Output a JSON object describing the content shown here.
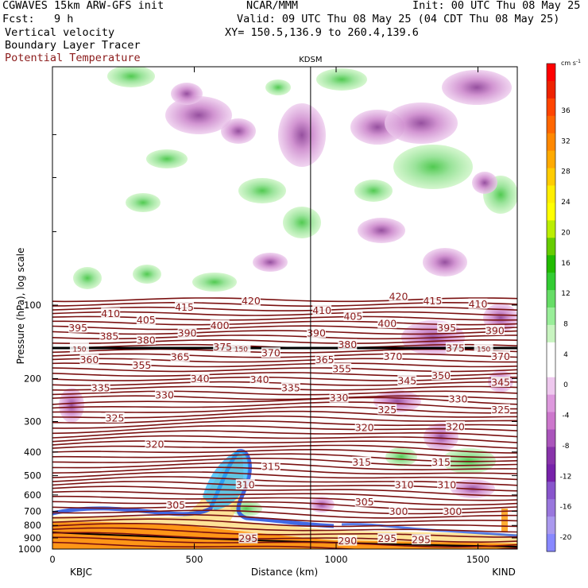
{
  "header": {
    "model": "CGWAVES 15km ARW-GFS init",
    "org": "NCAR/MMM",
    "init": "Init: 00 UTC Thu 08 May 25",
    "fcst": "Fcst:   9 h",
    "valid": "Valid: 09 UTC Thu 08 May 25 (04 CDT Thu 08 May 25)",
    "fields": [
      "Vertical velocity",
      "Boundary Layer Tracer"
    ],
    "theta_field": "Potential Temperature",
    "xy": "XY= 150.5,136.9 to 260.4,139.6"
  },
  "colors": {
    "theta": "#7a1010",
    "theta_text": "#8b1a1a"
  },
  "chart_data": {
    "type": "heatmap",
    "xlabel": "Distance (km)",
    "ylabel": "Pressure (hPa), log scale",
    "y_scale": "log",
    "xlim": [
      0,
      1640
    ],
    "x_ticks": [
      0,
      500,
      1000,
      1500
    ],
    "y_ticks": [
      100,
      200,
      300,
      400,
      500,
      600,
      700,
      800,
      900,
      1000
    ],
    "station_left": "KBJC",
    "station_right": "KIND",
    "station_mid": "KDSM",
    "station_mid_x": 910,
    "colorbar": {
      "units": "cm s",
      "units_exp": "-1",
      "labels": [
        36,
        32,
        28,
        24,
        20,
        16,
        12,
        8,
        4,
        0,
        -4,
        -8,
        -12,
        -16,
        -20
      ],
      "colors": [
        "#ff0000",
        "#ee2200",
        "#ff4400",
        "#ff6600",
        "#ff8800",
        "#ffaa00",
        "#ffcc00",
        "#ffee00",
        "#ffff00",
        "#bbee00",
        "#66cc00",
        "#22bb00",
        "#33cc33",
        "#66dd66",
        "#99ee99",
        "#c8f4c0",
        "#ffffff",
        "#ffffff",
        "#eec8ee",
        "#dd99dd",
        "#cc77cc",
        "#aa55bb",
        "#8833aa",
        "#7722aa",
        "#8855cc",
        "#9977dd",
        "#aa99ee",
        "#8888ff"
      ]
    },
    "theta_contours": [
      {
        "label": "420",
        "x": 700,
        "p": 96
      },
      {
        "label": "420",
        "x": 1220,
        "p": 92
      },
      {
        "label": "415",
        "x": 465,
        "p": 102
      },
      {
        "label": "415",
        "x": 1340,
        "p": 96
      },
      {
        "label": "410",
        "x": 205,
        "p": 108
      },
      {
        "label": "410",
        "x": 950,
        "p": 105
      },
      {
        "label": "410",
        "x": 1500,
        "p": 99
      },
      {
        "label": "405",
        "x": 330,
        "p": 115
      },
      {
        "label": "405",
        "x": 1060,
        "p": 111
      },
      {
        "label": "400",
        "x": 590,
        "p": 121
      },
      {
        "label": "400",
        "x": 1180,
        "p": 119
      },
      {
        "label": "395",
        "x": 90,
        "p": 124
      },
      {
        "label": "395",
        "x": 1390,
        "p": 124
      },
      {
        "label": "390",
        "x": 475,
        "p": 130
      },
      {
        "label": "390",
        "x": 930,
        "p": 130
      },
      {
        "label": "390",
        "x": 1560,
        "p": 127
      },
      {
        "label": "385",
        "x": 200,
        "p": 134
      },
      {
        "label": "380",
        "x": 330,
        "p": 139
      },
      {
        "label": "380",
        "x": 1040,
        "p": 145
      },
      {
        "label": "375",
        "x": 600,
        "p": 148
      },
      {
        "label": "375",
        "x": 1420,
        "p": 150
      },
      {
        "label": "370",
        "x": 770,
        "p": 157
      },
      {
        "label": "370",
        "x": 1200,
        "p": 162
      },
      {
        "label": "370",
        "x": 1580,
        "p": 162
      },
      {
        "label": "365",
        "x": 450,
        "p": 163
      },
      {
        "label": "365",
        "x": 960,
        "p": 167
      },
      {
        "label": "360",
        "x": 130,
        "p": 167
      },
      {
        "label": "355",
        "x": 315,
        "p": 176
      },
      {
        "label": "355",
        "x": 1020,
        "p": 182
      },
      {
        "label": "350",
        "x": 1370,
        "p": 194
      },
      {
        "label": "345",
        "x": 1250,
        "p": 204
      },
      {
        "label": "345",
        "x": 1580,
        "p": 207
      },
      {
        "label": "340",
        "x": 520,
        "p": 200
      },
      {
        "label": "340",
        "x": 730,
        "p": 202
      },
      {
        "label": "335",
        "x": 170,
        "p": 218
      },
      {
        "label": "335",
        "x": 840,
        "p": 218
      },
      {
        "label": "330",
        "x": 395,
        "p": 233
      },
      {
        "label": "330",
        "x": 1010,
        "p": 240
      },
      {
        "label": "330",
        "x": 1430,
        "p": 242
      },
      {
        "label": "325",
        "x": 220,
        "p": 290
      },
      {
        "label": "325",
        "x": 1180,
        "p": 268
      },
      {
        "label": "325",
        "x": 1580,
        "p": 268
      },
      {
        "label": "320",
        "x": 360,
        "p": 372
      },
      {
        "label": "320",
        "x": 1100,
        "p": 318
      },
      {
        "label": "320",
        "x": 1420,
        "p": 315
      },
      {
        "label": "315",
        "x": 770,
        "p": 458
      },
      {
        "label": "315",
        "x": 1090,
        "p": 440
      },
      {
        "label": "315",
        "x": 1370,
        "p": 440
      },
      {
        "label": "310",
        "x": 680,
        "p": 545
      },
      {
        "label": "310",
        "x": 1240,
        "p": 545
      },
      {
        "label": "310",
        "x": 1390,
        "p": 545
      },
      {
        "label": "305",
        "x": 435,
        "p": 660
      },
      {
        "label": "305",
        "x": 1100,
        "p": 640
      },
      {
        "label": "300",
        "x": 1220,
        "p": 700
      },
      {
        "label": "300",
        "x": 1410,
        "p": 700
      },
      {
        "label": "295",
        "x": 690,
        "p": 905
      },
      {
        "label": "295",
        "x": 1180,
        "p": 905
      },
      {
        "label": "295",
        "x": 1300,
        "p": 915
      },
      {
        "label": "290",
        "x": 1040,
        "p": 925
      },
      {
        "label": "150",
        "x": 95,
        "p": 150
      },
      {
        "label": "150",
        "x": 665,
        "p": 150
      },
      {
        "label": "150",
        "x": 1520,
        "p": 150
      }
    ]
  }
}
